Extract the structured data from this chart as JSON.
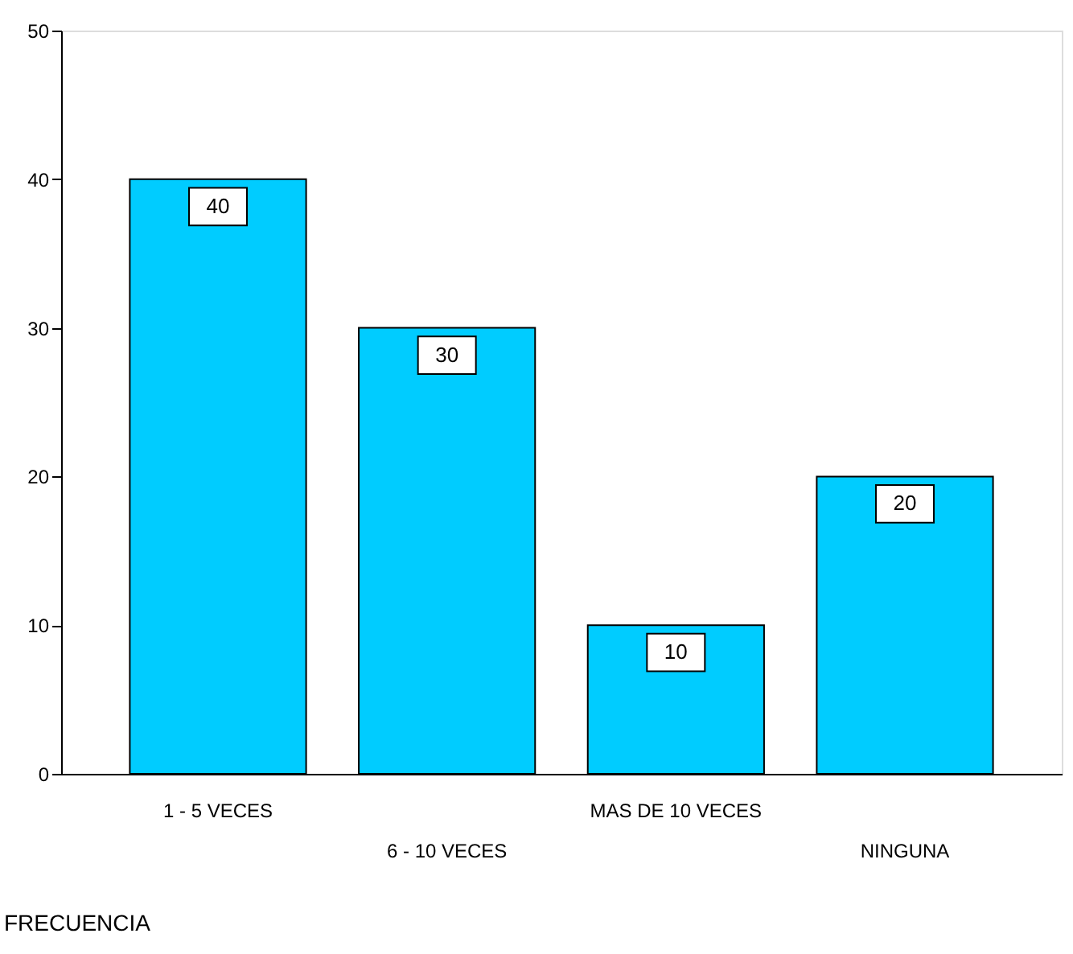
{
  "chart_data": {
    "type": "bar",
    "xlabel": "FRECUENCIA",
    "categories": [
      "1 - 5 VECES",
      "6 - 10 VECES",
      "MAS DE 10 VECES",
      "NINGUNA"
    ],
    "values": [
      40,
      30,
      10,
      20
    ],
    "color": "#00ccff",
    "ylim": [
      0,
      50
    ],
    "yticks": [
      0,
      10,
      20,
      30,
      40,
      50
    ],
    "grid": false,
    "data_labels": true
  }
}
